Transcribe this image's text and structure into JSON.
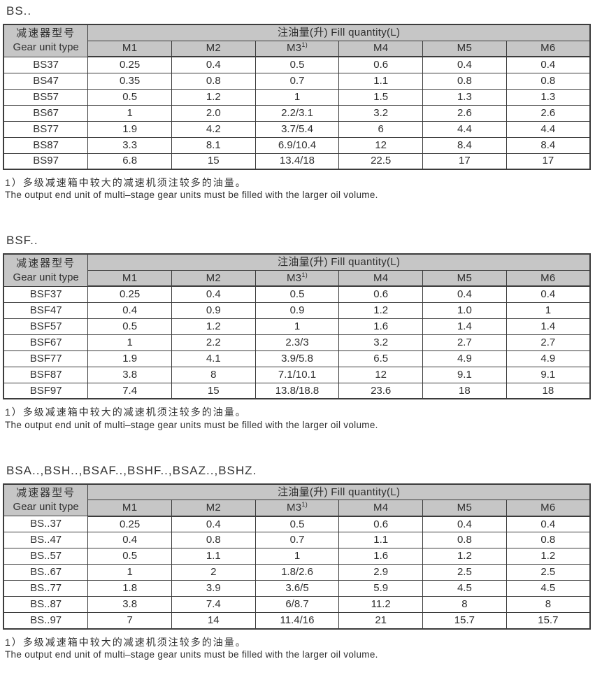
{
  "colors": {
    "header_bg": "#c6c6c6",
    "border": "#3c3c3c",
    "text": "#2f2f2f",
    "page_bg": "#ffffff"
  },
  "tables": [
    {
      "title": "BS..",
      "header": {
        "col1_zh": "减速器型号",
        "col1_en": "Gear unit type",
        "span_label": "注油量(升) Fill quantity(L)",
        "columns": [
          "M1",
          "M2",
          "M3",
          "M4",
          "M5",
          "M6"
        ],
        "note_marker": "1)"
      },
      "rows": [
        {
          "model": "BS37",
          "values": [
            "0.25",
            "0.4",
            "0.5",
            "0.6",
            "0.4",
            "0.4"
          ]
        },
        {
          "model": "BS47",
          "values": [
            "0.35",
            "0.8",
            "0.7",
            "1.1",
            "0.8",
            "0.8"
          ]
        },
        {
          "model": "BS57",
          "values": [
            "0.5",
            "1.2",
            "1",
            "1.5",
            "1.3",
            "1.3"
          ]
        },
        {
          "model": "BS67",
          "values": [
            "1",
            "2.0",
            "2.2/3.1",
            "3.2",
            "2.6",
            "2.6"
          ]
        },
        {
          "model": "BS77",
          "values": [
            "1.9",
            "4.2",
            "3.7/5.4",
            "6",
            "4.4",
            "4.4"
          ]
        },
        {
          "model": "BS87",
          "values": [
            "3.3",
            "8.1",
            "6.9/10.4",
            "12",
            "8.4",
            "8.4"
          ]
        },
        {
          "model": "BS97",
          "values": [
            "6.8",
            "15",
            "13.4/18",
            "22.5",
            "17",
            "17"
          ]
        }
      ],
      "footnote_zh": "1）多级减速箱中较大的减速机须注较多的油量。",
      "footnote_en": "The output end unit of multi–stage gear units must be filled with the larger oil volume."
    },
    {
      "title": "BSF..",
      "header": {
        "col1_zh": "减速器型号",
        "col1_en": "Gear unit type",
        "span_label": "注油量(升) Fill quantity(L)",
        "columns": [
          "M1",
          "M2",
          "M3",
          "M4",
          "M5",
          "M6"
        ],
        "note_marker": "1)"
      },
      "rows": [
        {
          "model": "BSF37",
          "values": [
            "0.25",
            "0.4",
            "0.5",
            "0.6",
            "0.4",
            "0.4"
          ]
        },
        {
          "model": "BSF47",
          "values": [
            "0.4",
            "0.9",
            "0.9",
            "1.2",
            "1.0",
            "1"
          ]
        },
        {
          "model": "BSF57",
          "values": [
            "0.5",
            "1.2",
            "1",
            "1.6",
            "1.4",
            "1.4"
          ]
        },
        {
          "model": "BSF67",
          "values": [
            "1",
            "2.2",
            "2.3/3",
            "3.2",
            "2.7",
            "2.7"
          ]
        },
        {
          "model": "BSF77",
          "values": [
            "1.9",
            "4.1",
            "3.9/5.8",
            "6.5",
            "4.9",
            "4.9"
          ]
        },
        {
          "model": "BSF87",
          "values": [
            "3.8",
            "8",
            "7.1/10.1",
            "12",
            "9.1",
            "9.1"
          ]
        },
        {
          "model": "BSF97",
          "values": [
            "7.4",
            "15",
            "13.8/18.8",
            "23.6",
            "18",
            "18"
          ]
        }
      ],
      "footnote_zh": "1）多级减速箱中较大的减速机须注较多的油量。",
      "footnote_en": "The output end unit of multi–stage gear units must be filled with the larger oil volume."
    },
    {
      "title": "BSA..,BSH..,BSAF..,BSHF..,BSAZ..,BSHZ.",
      "header": {
        "col1_zh": "减速器型号",
        "col1_en": "Gear unit type",
        "span_label": "注油量(升) Fill quantity(L)",
        "columns": [
          "M1",
          "M2",
          "M3",
          "M4",
          "M5",
          "M6"
        ],
        "note_marker": "1)"
      },
      "rows": [
        {
          "model": "BS..37",
          "values": [
            "0.25",
            "0.4",
            "0.5",
            "0.6",
            "0.4",
            "0.4"
          ]
        },
        {
          "model": "BS..47",
          "values": [
            "0.4",
            "0.8",
            "0.7",
            "1.1",
            "0.8",
            "0.8"
          ]
        },
        {
          "model": "BS..57",
          "values": [
            "0.5",
            "1.1",
            "1",
            "1.6",
            "1.2",
            "1.2"
          ]
        },
        {
          "model": "BS..67",
          "values": [
            "1",
            "2",
            "1.8/2.6",
            "2.9",
            "2.5",
            "2.5"
          ]
        },
        {
          "model": "BS..77",
          "values": [
            "1.8",
            "3.9",
            "3.6/5",
            "5.9",
            "4.5",
            "4.5"
          ]
        },
        {
          "model": "BS..87",
          "values": [
            "3.8",
            "7.4",
            "6/8.7",
            "11.2",
            "8",
            "8"
          ]
        },
        {
          "model": "BS..97",
          "values": [
            "7",
            "14",
            "11.4/16",
            "21",
            "15.7",
            "15.7"
          ]
        }
      ],
      "footnote_zh": "1）多级减速箱中较大的减速机须注较多的油量。",
      "footnote_en": "The output end unit of multi–stage gear units must be filled with the larger oil volume."
    }
  ]
}
